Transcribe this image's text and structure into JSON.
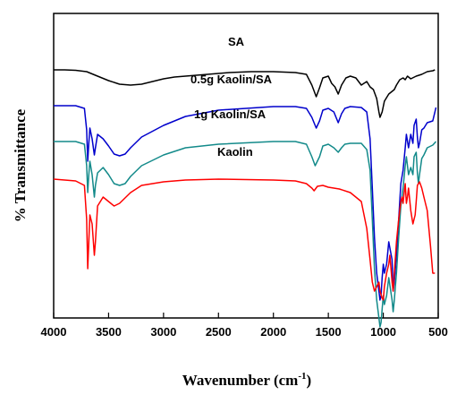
{
  "chart_data": {
    "type": "line",
    "xlabel": "Wavenumber (cm",
    "xlabel_superscript": "-1",
    "xlabel_suffix": ")",
    "ylabel": "% Transmittance",
    "xlim": [
      4000,
      500
    ],
    "x_reversed": true,
    "y_ticks": false,
    "x_ticks": [
      4000,
      3500,
      3000,
      2500,
      2000,
      1500,
      1000,
      500
    ],
    "series": [
      {
        "name": "SA",
        "color": "#000000",
        "points": [
          [
            4000,
            63
          ],
          [
            3900,
            63
          ],
          [
            3800,
            63.5
          ],
          [
            3700,
            65
          ],
          [
            3600,
            70
          ],
          [
            3500,
            75
          ],
          [
            3400,
            79
          ],
          [
            3300,
            80
          ],
          [
            3200,
            79
          ],
          [
            3100,
            76
          ],
          [
            3000,
            73
          ],
          [
            2900,
            71
          ],
          [
            2800,
            70
          ],
          [
            2600,
            68
          ],
          [
            2400,
            66
          ],
          [
            2200,
            65
          ],
          [
            2000,
            65
          ],
          [
            1800,
            66
          ],
          [
            1700,
            68
          ],
          [
            1650,
            80
          ],
          [
            1610,
            93
          ],
          [
            1580,
            83
          ],
          [
            1550,
            72
          ],
          [
            1500,
            70
          ],
          [
            1470,
            78
          ],
          [
            1440,
            82
          ],
          [
            1410,
            90
          ],
          [
            1380,
            80
          ],
          [
            1340,
            72
          ],
          [
            1300,
            70
          ],
          [
            1250,
            72
          ],
          [
            1200,
            80
          ],
          [
            1150,
            76
          ],
          [
            1120,
            82
          ],
          [
            1090,
            85
          ],
          [
            1060,
            95
          ],
          [
            1040,
            110
          ],
          [
            1030,
            116
          ],
          [
            1010,
            110
          ],
          [
            990,
            98
          ],
          [
            950,
            90
          ],
          [
            900,
            85
          ],
          [
            880,
            80
          ],
          [
            850,
            74
          ],
          [
            820,
            72
          ],
          [
            800,
            74
          ],
          [
            780,
            70
          ],
          [
            750,
            73
          ],
          [
            700,
            70
          ],
          [
            650,
            68
          ],
          [
            600,
            65
          ],
          [
            550,
            64
          ],
          [
            530,
            63
          ]
        ]
      },
      {
        "name": "0.5g Kaolin/SA",
        "color": "#0000cc",
        "points": [
          [
            4000,
            103
          ],
          [
            3800,
            103
          ],
          [
            3720,
            106
          ],
          [
            3700,
            130
          ],
          [
            3690,
            165
          ],
          [
            3680,
            145
          ],
          [
            3670,
            128
          ],
          [
            3650,
            140
          ],
          [
            3630,
            158
          ],
          [
            3620,
            150
          ],
          [
            3600,
            135
          ],
          [
            3550,
            140
          ],
          [
            3500,
            148
          ],
          [
            3450,
            157
          ],
          [
            3400,
            159
          ],
          [
            3350,
            157
          ],
          [
            3300,
            150
          ],
          [
            3200,
            138
          ],
          [
            3000,
            125
          ],
          [
            2800,
            115
          ],
          [
            2500,
            108
          ],
          [
            2000,
            104
          ],
          [
            1800,
            104
          ],
          [
            1700,
            106
          ],
          [
            1650,
            116
          ],
          [
            1610,
            128
          ],
          [
            1580,
            120
          ],
          [
            1550,
            108
          ],
          [
            1500,
            106
          ],
          [
            1450,
            110
          ],
          [
            1410,
            122
          ],
          [
            1380,
            112
          ],
          [
            1350,
            106
          ],
          [
            1300,
            104
          ],
          [
            1200,
            105
          ],
          [
            1150,
            110
          ],
          [
            1120,
            140
          ],
          [
            1100,
            195
          ],
          [
            1080,
            250
          ],
          [
            1060,
            290
          ],
          [
            1040,
            310
          ],
          [
            1030,
            320
          ],
          [
            1020,
            315
          ],
          [
            1010,
            295
          ],
          [
            1000,
            280
          ],
          [
            990,
            290
          ],
          [
            970,
            280
          ],
          [
            950,
            255
          ],
          [
            920,
            275
          ],
          [
            910,
            310
          ],
          [
            900,
            300
          ],
          [
            880,
            270
          ],
          [
            860,
            230
          ],
          [
            840,
            190
          ],
          [
            820,
            175
          ],
          [
            800,
            150
          ],
          [
            790,
            135
          ],
          [
            770,
            150
          ],
          [
            750,
            135
          ],
          [
            730,
            145
          ],
          [
            720,
            125
          ],
          [
            700,
            118
          ],
          [
            690,
            138
          ],
          [
            680,
            150
          ],
          [
            670,
            145
          ],
          [
            650,
            130
          ],
          [
            630,
            128
          ],
          [
            600,
            122
          ],
          [
            550,
            120
          ],
          [
            520,
            105
          ]
        ]
      },
      {
        "name": "1g Kaolin/SA",
        "color": "#138a8a",
        "points": [
          [
            4000,
            143
          ],
          [
            3800,
            143
          ],
          [
            3720,
            146
          ],
          [
            3700,
            170
          ],
          [
            3690,
            200
          ],
          [
            3680,
            180
          ],
          [
            3670,
            165
          ],
          [
            3650,
            180
          ],
          [
            3630,
            205
          ],
          [
            3620,
            192
          ],
          [
            3600,
            178
          ],
          [
            3550,
            172
          ],
          [
            3500,
            180
          ],
          [
            3450,
            190
          ],
          [
            3400,
            192
          ],
          [
            3350,
            190
          ],
          [
            3300,
            182
          ],
          [
            3200,
            170
          ],
          [
            3000,
            158
          ],
          [
            2800,
            150
          ],
          [
            2500,
            146
          ],
          [
            2000,
            143
          ],
          [
            1800,
            143
          ],
          [
            1700,
            146
          ],
          [
            1650,
            160
          ],
          [
            1620,
            170
          ],
          [
            1580,
            160
          ],
          [
            1550,
            148
          ],
          [
            1500,
            146
          ],
          [
            1450,
            150
          ],
          [
            1410,
            155
          ],
          [
            1380,
            150
          ],
          [
            1350,
            146
          ],
          [
            1300,
            145
          ],
          [
            1200,
            145
          ],
          [
            1150,
            152
          ],
          [
            1120,
            175
          ],
          [
            1100,
            230
          ],
          [
            1080,
            285
          ],
          [
            1060,
            320
          ],
          [
            1040,
            340
          ],
          [
            1030,
            350
          ],
          [
            1020,
            345
          ],
          [
            1010,
            330
          ],
          [
            1000,
            315
          ],
          [
            990,
            325
          ],
          [
            970,
            315
          ],
          [
            950,
            295
          ],
          [
            920,
            320
          ],
          [
            910,
            333
          ],
          [
            900,
            320
          ],
          [
            880,
            290
          ],
          [
            860,
            250
          ],
          [
            840,
            215
          ],
          [
            820,
            195
          ],
          [
            800,
            170
          ],
          [
            790,
            160
          ],
          [
            770,
            180
          ],
          [
            750,
            172
          ],
          [
            730,
            180
          ],
          [
            720,
            160
          ],
          [
            700,
            155
          ],
          [
            690,
            178
          ],
          [
            680,
            190
          ],
          [
            670,
            180
          ],
          [
            650,
            162
          ],
          [
            630,
            158
          ],
          [
            600,
            150
          ],
          [
            550,
            147
          ],
          [
            520,
            143
          ]
        ]
      },
      {
        "name": "Kaolin",
        "color": "#ff0000",
        "points": [
          [
            4000,
            185
          ],
          [
            3800,
            187
          ],
          [
            3720,
            192
          ],
          [
            3700,
            230
          ],
          [
            3690,
            285
          ],
          [
            3680,
            255
          ],
          [
            3670,
            225
          ],
          [
            3650,
            235
          ],
          [
            3630,
            270
          ],
          [
            3620,
            255
          ],
          [
            3600,
            215
          ],
          [
            3550,
            205
          ],
          [
            3500,
            210
          ],
          [
            3450,
            215
          ],
          [
            3400,
            212
          ],
          [
            3300,
            200
          ],
          [
            3200,
            192
          ],
          [
            3000,
            188
          ],
          [
            2800,
            186
          ],
          [
            2500,
            185
          ],
          [
            2000,
            186
          ],
          [
            1800,
            187
          ],
          [
            1700,
            190
          ],
          [
            1650,
            195
          ],
          [
            1630,
            198
          ],
          [
            1600,
            193
          ],
          [
            1550,
            192
          ],
          [
            1500,
            194
          ],
          [
            1400,
            196
          ],
          [
            1300,
            200
          ],
          [
            1200,
            210
          ],
          [
            1150,
            240
          ],
          [
            1120,
            275
          ],
          [
            1100,
            300
          ],
          [
            1080,
            310
          ],
          [
            1060,
            305
          ],
          [
            1040,
            300
          ],
          [
            1030,
            310
          ],
          [
            1010,
            318
          ],
          [
            1000,
            320
          ],
          [
            990,
            305
          ],
          [
            970,
            290
          ],
          [
            950,
            280
          ],
          [
            940,
            270
          ],
          [
            930,
            285
          ],
          [
            920,
            300
          ],
          [
            910,
            310
          ],
          [
            900,
            290
          ],
          [
            880,
            255
          ],
          [
            860,
            230
          ],
          [
            840,
            210
          ],
          [
            830,
            205
          ],
          [
            820,
            212
          ],
          [
            810,
            200
          ],
          [
            800,
            190
          ],
          [
            790,
            212
          ],
          [
            780,
            205
          ],
          [
            770,
            195
          ],
          [
            750,
            220
          ],
          [
            730,
            235
          ],
          [
            710,
            225
          ],
          [
            700,
            210
          ],
          [
            690,
            192
          ],
          [
            670,
            188
          ],
          [
            650,
            195
          ],
          [
            630,
            205
          ],
          [
            600,
            220
          ],
          [
            570,
            260
          ],
          [
            550,
            290
          ],
          [
            530,
            290
          ]
        ]
      }
    ],
    "labels": [
      "SA",
      "0.5g Kaolin/SA",
      "1g Kaolin/SA",
      "Kaolin"
    ]
  }
}
